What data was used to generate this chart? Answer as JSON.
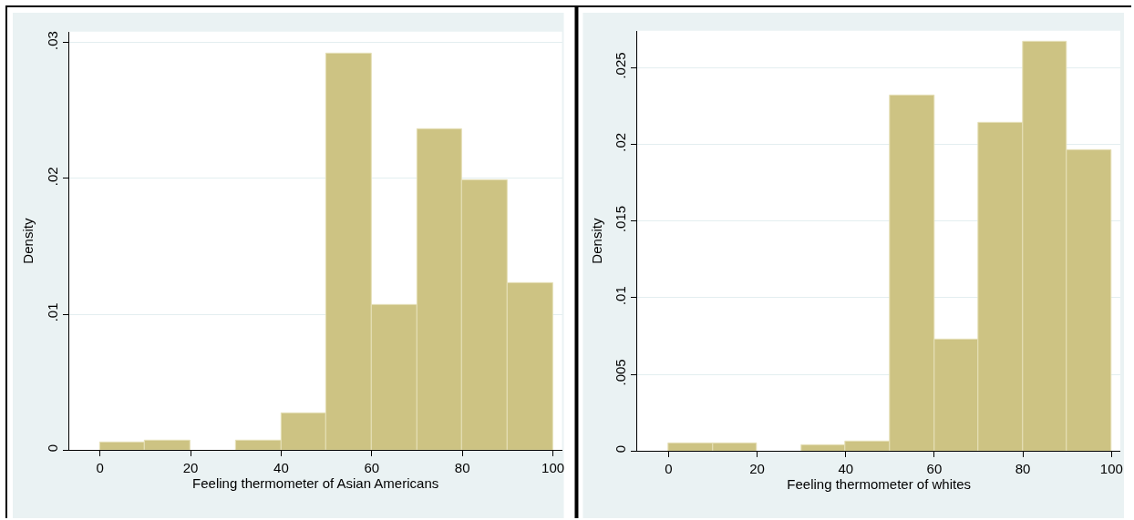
{
  "chart_data": [
    {
      "type": "histogram",
      "bins": [
        0,
        10,
        20,
        30,
        40,
        50,
        60,
        70,
        80,
        90,
        100
      ],
      "values": [
        0.0006,
        0.0007,
        0,
        0.0007,
        0.0027,
        0.0292,
        0.0107,
        0.0236,
        0.0199,
        0.0123
      ],
      "color": "#cdc383",
      "xlabel": "Feeling thermometer of Asian Americans",
      "ylabel": "Density",
      "xlim": [
        -6.8,
        102
      ],
      "ylim": [
        0,
        0.0308
      ],
      "xticks": [
        0,
        20,
        40,
        60,
        80,
        100
      ],
      "yticks": [
        0,
        {
          "value": 0.01,
          "label": ".01"
        },
        {
          "value": 0.02,
          "label": ".02"
        },
        {
          "value": 0.03,
          "label": ".03"
        }
      ],
      "grid": "y"
    },
    {
      "type": "histogram",
      "bins": [
        0,
        10,
        20,
        30,
        40,
        50,
        60,
        70,
        80,
        90,
        100
      ],
      "values": [
        0.0005,
        0.0005,
        0,
        0.0004,
        0.0006,
        0.0232,
        0.0073,
        0.0214,
        0.0267,
        0.0196
      ],
      "color": "#cdc383",
      "xlabel": "Feeling thermometer of whites",
      "ylabel": "Density",
      "xlim": [
        -7,
        102
      ],
      "ylim": [
        0,
        0.0274
      ],
      "xticks": [
        0,
        20,
        40,
        60,
        80,
        100
      ],
      "yticks": [
        0,
        {
          "value": 0.005,
          "label": ".005"
        },
        {
          "value": 0.01,
          "label": ".01"
        },
        {
          "value": 0.015,
          "label": ".015"
        },
        {
          "value": 0.02,
          "label": ".02"
        },
        {
          "value": 0.025,
          "label": ".025"
        }
      ],
      "grid": "y"
    }
  ]
}
